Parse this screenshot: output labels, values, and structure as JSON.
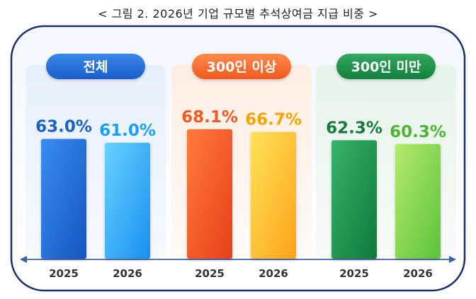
{
  "caption": "< 그림 2. 2026년 기업 규모별 추석상여금 지급 비중 >",
  "chart_data": {
    "type": "bar",
    "title": "< 그림 2. 2026년 기업 규모별 추석상여금 지급 비중 >",
    "unit": "%",
    "ylim": [
      0,
      100
    ],
    "grid": false,
    "legend": "none",
    "groups": [
      {
        "name": "전체",
        "color": "#1f6fd6",
        "value_color": "#1a5fc8",
        "categories": [
          "2025",
          "2026"
        ],
        "values": [
          63.0,
          61.0
        ],
        "labels": [
          "63.0%",
          "61.0%"
        ]
      },
      {
        "name": "300인 이상",
        "color": "#f26a2e",
        "value_color": "#f05a22",
        "categories": [
          "2025",
          "2026"
        ],
        "values": [
          68.1,
          66.7
        ],
        "labels": [
          "68.1%",
          "66.7%"
        ]
      },
      {
        "name": "300인 미만",
        "color": "#1f8f4a",
        "value_color": "#1a7a3e",
        "categories": [
          "2025",
          "2026"
        ],
        "values": [
          62.3,
          60.3
        ],
        "labels": [
          "62.3%",
          "60.3%"
        ]
      }
    ]
  }
}
